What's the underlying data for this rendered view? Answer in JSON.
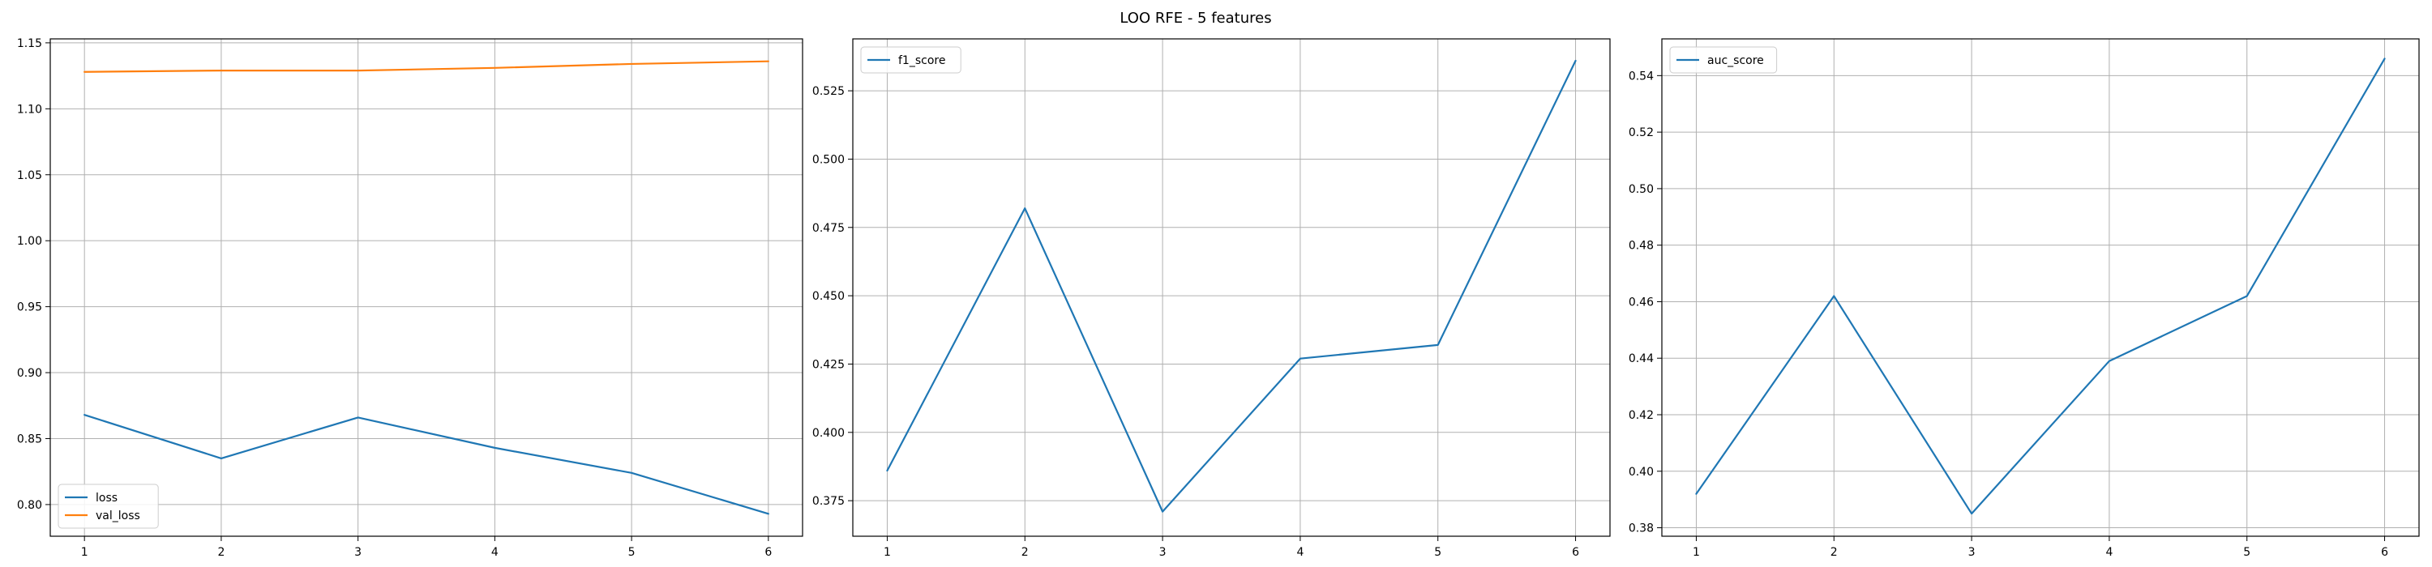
{
  "figure": {
    "suptitle": "LOO RFE - 5 features"
  },
  "chart_data": [
    {
      "type": "line",
      "x": [
        1,
        2,
        3,
        4,
        5,
        6
      ],
      "xticks": [
        1,
        2,
        3,
        4,
        5,
        6
      ],
      "xlim": [
        0.75,
        6.25
      ],
      "ylim": [
        0.776,
        1.153
      ],
      "yticks": [
        0.8,
        0.85,
        0.9,
        0.95,
        1.0,
        1.05,
        1.1,
        1.15
      ],
      "ytick_decimals": 2,
      "grid": true,
      "legend": "lower-left",
      "series": [
        {
          "name": "loss",
          "color": "#1f77b4",
          "values": [
            0.868,
            0.835,
            0.866,
            0.843,
            0.824,
            0.793
          ]
        },
        {
          "name": "val_loss",
          "color": "#ff7f0e",
          "values": [
            1.128,
            1.129,
            1.129,
            1.131,
            1.134,
            1.136
          ]
        }
      ]
    },
    {
      "type": "line",
      "x": [
        1,
        2,
        3,
        4,
        5,
        6
      ],
      "xticks": [
        1,
        2,
        3,
        4,
        5,
        6
      ],
      "xlim": [
        0.75,
        6.25
      ],
      "ylim": [
        0.362,
        0.544
      ],
      "yticks": [
        0.375,
        0.4,
        0.425,
        0.45,
        0.475,
        0.5,
        0.525
      ],
      "ytick_decimals": 3,
      "grid": true,
      "legend": "upper-left",
      "series": [
        {
          "name": "f1_score",
          "color": "#1f77b4",
          "values": [
            0.386,
            0.482,
            0.371,
            0.427,
            0.432,
            0.536
          ]
        }
      ]
    },
    {
      "type": "line",
      "x": [
        1,
        2,
        3,
        4,
        5,
        6
      ],
      "xticks": [
        1,
        2,
        3,
        4,
        5,
        6
      ],
      "xlim": [
        0.75,
        6.25
      ],
      "ylim": [
        0.377,
        0.553
      ],
      "yticks": [
        0.38,
        0.4,
        0.42,
        0.44,
        0.46,
        0.48,
        0.5,
        0.52,
        0.54
      ],
      "ytick_decimals": 2,
      "grid": true,
      "legend": "upper-left",
      "series": [
        {
          "name": "auc_score",
          "color": "#1f77b4",
          "values": [
            0.392,
            0.462,
            0.385,
            0.439,
            0.462,
            0.546
          ]
        }
      ]
    }
  ]
}
